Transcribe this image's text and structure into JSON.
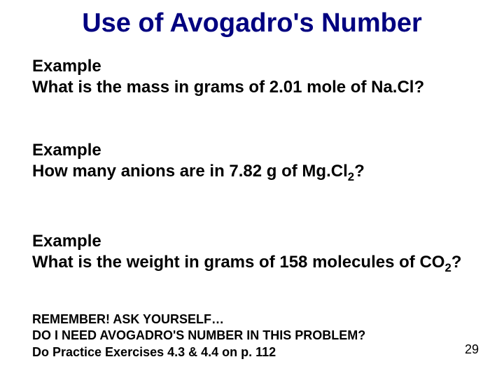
{
  "title": "Use of Avogadro's Number",
  "ex1": {
    "label": "Example",
    "text": "What is the mass in grams of 2.01 mole of Na.Cl?"
  },
  "ex2": {
    "label": "Example",
    "prefix": "How many anions are in 7.82 g of Mg.Cl",
    "sub": "2",
    "suffix": "?"
  },
  "ex3": {
    "label": "Example",
    "line1": "What is the weight in grams of 158 molecules of",
    "co": "CO",
    "sub": "2",
    "suffix": "?"
  },
  "footer": {
    "l1": "REMEMBER! ASK YOURSELF…",
    "l2": "DO I NEED AVOGADRO'S NUMBER IN THIS PROBLEM?",
    "l3": "Do Practice Exercises 4.3 & 4.4 on p. 112"
  },
  "page": "29"
}
